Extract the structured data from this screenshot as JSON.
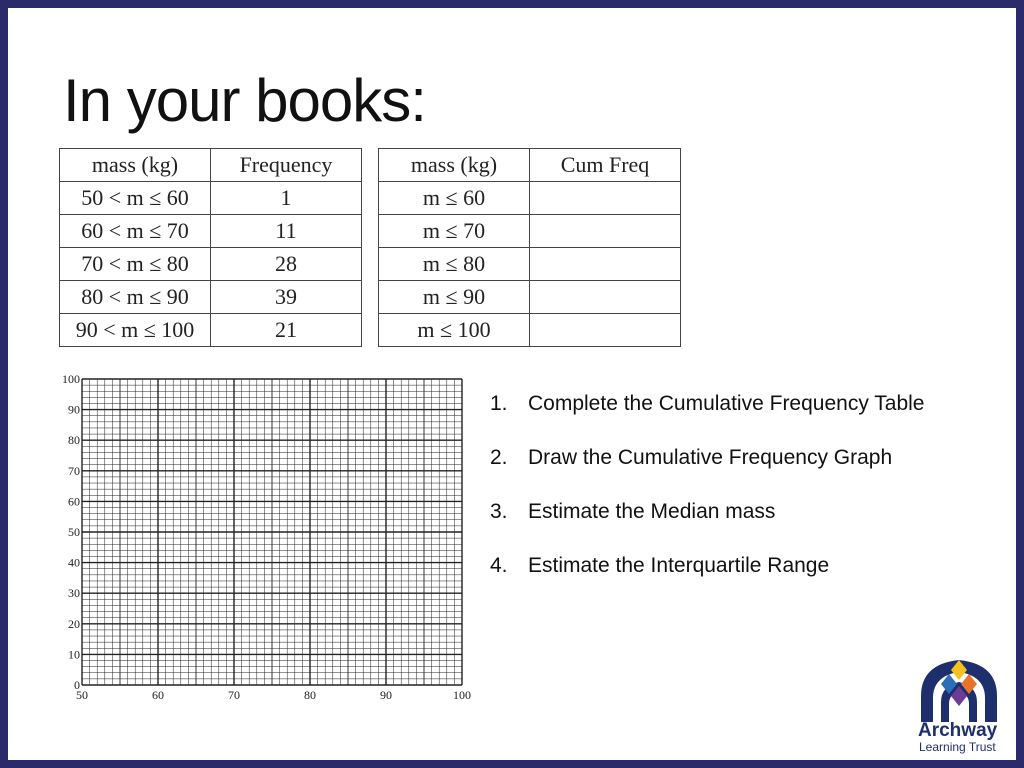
{
  "title": "In your books:",
  "table1": {
    "headers": [
      "mass (kg)",
      "Frequency"
    ],
    "rows": [
      [
        "50 < m ≤ 60",
        "1"
      ],
      [
        "60 < m ≤ 70",
        "11"
      ],
      [
        "70 < m ≤ 80",
        "28"
      ],
      [
        "80 < m ≤ 90",
        "39"
      ],
      [
        "90 < m ≤ 100",
        "21"
      ]
    ]
  },
  "table2": {
    "headers": [
      "mass (kg)",
      "Cum Freq"
    ],
    "rows": [
      [
        "m ≤ 60",
        ""
      ],
      [
        "m ≤ 70",
        ""
      ],
      [
        "m ≤ 80",
        ""
      ],
      [
        "m ≤ 90",
        ""
      ],
      [
        "m ≤ 100",
        ""
      ]
    ]
  },
  "graph": {
    "x_ticks": [
      "50",
      "60",
      "70",
      "80",
      "90",
      "100"
    ],
    "y_ticks": [
      "0",
      "10",
      "20",
      "30",
      "40",
      "50",
      "60",
      "70",
      "80",
      "90",
      "100"
    ]
  },
  "tasks": [
    {
      "num": "1.",
      "text": "Complete the Cumulative Frequency Table"
    },
    {
      "num": "2.",
      "text": "Draw the Cumulative Frequency Graph"
    },
    {
      "num": "3.",
      "text": "Estimate the Median mass"
    },
    {
      "num": "4.",
      "text": "Estimate the Interquartile Range"
    }
  ],
  "logo": {
    "name": "Archway",
    "subtitle": "Learning Trust"
  },
  "colors": {
    "frame": "#2b2b6b",
    "logo_blue": "#1e2f6e"
  }
}
